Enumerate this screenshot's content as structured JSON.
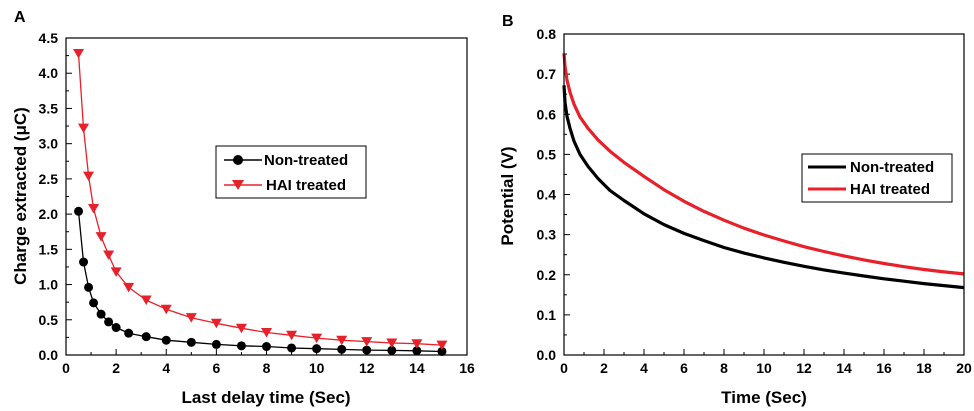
{
  "chart_data": [
    {
      "panel_label": "A",
      "type": "line",
      "xlabel": "Last delay time (Sec)",
      "ylabel": "Charge extracted (μC)",
      "xlim": [
        0,
        16
      ],
      "ylim": [
        0,
        4.5
      ],
      "xticks": [
        0,
        2,
        4,
        6,
        8,
        10,
        12,
        14,
        16
      ],
      "yticks": [
        0.0,
        0.5,
        1.0,
        1.5,
        2.0,
        2.5,
        3.0,
        3.5,
        4.0,
        4.5
      ],
      "ytick_labels": [
        "0.0",
        "0.5",
        "1.0",
        "1.5",
        "2.0",
        "2.5",
        "3.0",
        "3.5",
        "4.0",
        "4.5"
      ],
      "legend_position": "center-right",
      "series": [
        {
          "name": "Non-treated",
          "color": "#000000",
          "marker": "circle",
          "x": [
            0.5,
            0.7,
            0.9,
            1.1,
            1.4,
            1.7,
            2.0,
            2.5,
            3.2,
            4.0,
            5.0,
            6.0,
            7.0,
            8.0,
            9.0,
            10.0,
            11.0,
            12.0,
            13.0,
            14.0,
            15.0
          ],
          "y": [
            2.04,
            1.32,
            0.96,
            0.74,
            0.58,
            0.47,
            0.39,
            0.31,
            0.26,
            0.21,
            0.18,
            0.15,
            0.13,
            0.12,
            0.1,
            0.09,
            0.08,
            0.07,
            0.065,
            0.06,
            0.05
          ]
        },
        {
          "name": "HAI treated",
          "color": "#e8202a",
          "marker": "triangle-down",
          "x": [
            0.5,
            0.7,
            0.9,
            1.1,
            1.4,
            1.7,
            2.0,
            2.5,
            3.2,
            4.0,
            5.0,
            6.0,
            7.0,
            8.0,
            9.0,
            10.0,
            11.0,
            12.0,
            13.0,
            14.0,
            15.0
          ],
          "y": [
            4.28,
            3.22,
            2.54,
            2.08,
            1.68,
            1.42,
            1.18,
            0.96,
            0.78,
            0.65,
            0.53,
            0.45,
            0.38,
            0.32,
            0.28,
            0.24,
            0.21,
            0.19,
            0.17,
            0.16,
            0.14
          ]
        }
      ]
    },
    {
      "panel_label": "B",
      "type": "line",
      "xlabel": "Time (Sec)",
      "ylabel": "Potential (V)",
      "xlim": [
        0,
        20
      ],
      "ylim": [
        0,
        0.8
      ],
      "xticks": [
        0,
        2,
        4,
        6,
        8,
        10,
        12,
        14,
        16,
        18,
        20
      ],
      "yticks": [
        0.0,
        0.1,
        0.2,
        0.3,
        0.4,
        0.5,
        0.6,
        0.7,
        0.8
      ],
      "ytick_labels": [
        "0.0",
        "0.1",
        "0.2",
        "0.3",
        "0.4",
        "0.5",
        "0.6",
        "0.7",
        "0.8"
      ],
      "legend_position": "center-right",
      "series": [
        {
          "name": "Non-treated",
          "color": "#000000",
          "x": [
            0,
            0.05,
            0.15,
            0.3,
            0.5,
            0.8,
            1.2,
            1.7,
            2.3,
            3,
            4,
            5,
            6,
            7,
            8,
            9,
            10,
            11,
            12,
            13,
            14,
            15,
            16,
            17,
            18,
            19,
            20
          ],
          "y": [
            0.672,
            0.63,
            0.595,
            0.565,
            0.533,
            0.5,
            0.47,
            0.44,
            0.41,
            0.385,
            0.352,
            0.325,
            0.303,
            0.285,
            0.268,
            0.254,
            0.242,
            0.231,
            0.221,
            0.212,
            0.204,
            0.197,
            0.19,
            0.184,
            0.178,
            0.173,
            0.168
          ]
        },
        {
          "name": "HAI treated",
          "color": "#e8202a",
          "x": [
            0,
            0.05,
            0.15,
            0.3,
            0.5,
            0.8,
            1.2,
            1.7,
            2.3,
            3,
            4,
            5,
            6,
            7,
            8,
            9,
            10,
            11,
            12,
            13,
            14,
            15,
            16,
            17,
            18,
            19,
            20
          ],
          "y": [
            0.752,
            0.72,
            0.685,
            0.655,
            0.625,
            0.593,
            0.565,
            0.536,
            0.508,
            0.48,
            0.445,
            0.412,
            0.383,
            0.358,
            0.336,
            0.316,
            0.299,
            0.284,
            0.27,
            0.258,
            0.247,
            0.237,
            0.228,
            0.22,
            0.213,
            0.207,
            0.202
          ]
        }
      ]
    }
  ]
}
